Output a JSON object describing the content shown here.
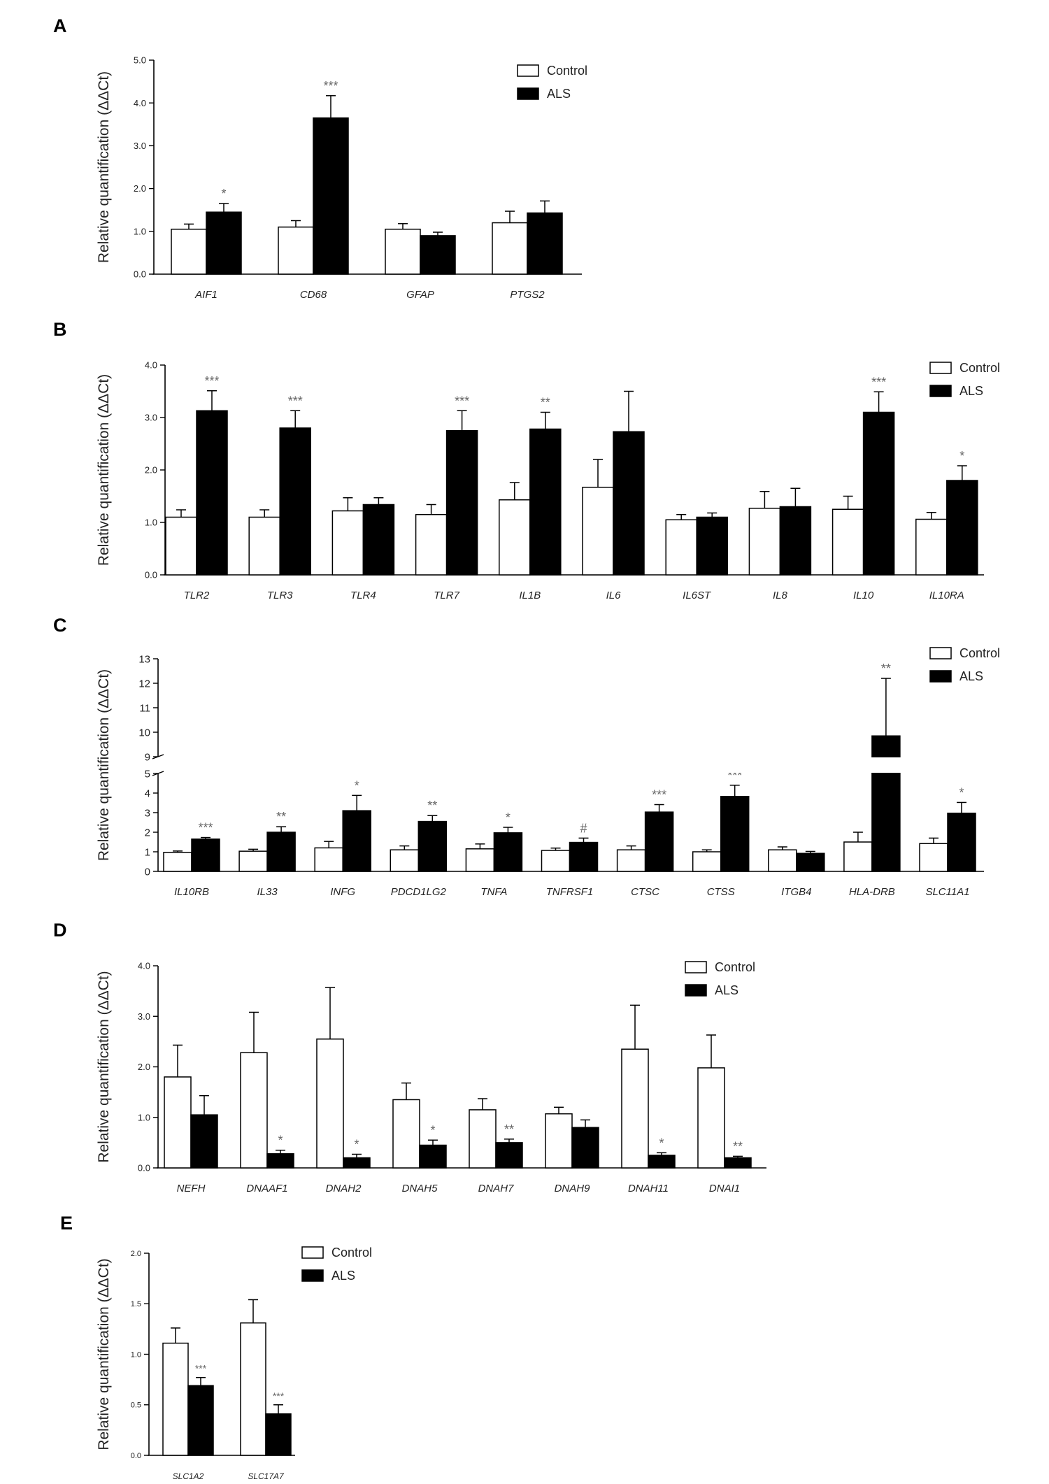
{
  "legend": {
    "control": "Control",
    "als": "ALS"
  },
  "chart_data": [
    {
      "type": "bar",
      "panel_label": "A",
      "ylabel": "Relative quantification (ΔΔCt)",
      "ylim": [
        0,
        5
      ],
      "yticks": [
        "0.0",
        "1.0",
        "2.0",
        "3.0",
        "4.0",
        "5.0"
      ],
      "ytick_values": [
        0,
        1,
        2,
        3,
        4,
        5
      ],
      "categories": [
        "AIF1",
        "CD68",
        "GFAP",
        "PTGS2"
      ],
      "series": [
        {
          "name": "Control",
          "values": [
            1.05,
            1.1,
            1.05,
            1.2
          ],
          "errors": [
            0.12,
            0.15,
            0.13,
            0.27
          ]
        },
        {
          "name": "ALS",
          "values": [
            1.45,
            3.65,
            0.9,
            1.43
          ],
          "errors": [
            0.2,
            0.52,
            0.08,
            0.28
          ]
        }
      ],
      "significance": [
        "*",
        "***",
        "",
        ""
      ],
      "legend_position": "top-right"
    },
    {
      "type": "bar",
      "panel_label": "B",
      "ylabel": "Relative quantification (ΔΔCt)",
      "ylim": [
        0,
        4
      ],
      "yticks": [
        "0.0",
        "1.0",
        "2.0",
        "3.0",
        "4.0"
      ],
      "ytick_values": [
        0,
        1,
        2,
        3,
        4
      ],
      "categories": [
        "TLR2",
        "TLR3",
        "TLR4",
        "TLR7",
        "IL1B",
        "IL6",
        "IL6ST",
        "IL8",
        "IL10",
        "IL10RA"
      ],
      "series": [
        {
          "name": "Control",
          "values": [
            1.1,
            1.1,
            1.22,
            1.15,
            1.43,
            1.67,
            1.05,
            1.27,
            1.25,
            1.06
          ],
          "errors": [
            0.14,
            0.14,
            0.25,
            0.19,
            0.33,
            0.53,
            0.1,
            0.32,
            0.25,
            0.13
          ]
        },
        {
          "name": "ALS",
          "values": [
            3.13,
            2.8,
            1.34,
            2.75,
            2.78,
            2.73,
            1.1,
            1.3,
            3.1,
            1.8
          ],
          "errors": [
            0.38,
            0.33,
            0.13,
            0.38,
            0.32,
            0.77,
            0.08,
            0.35,
            0.39,
            0.28
          ]
        }
      ],
      "significance": [
        "***",
        "***",
        "",
        "***",
        "**",
        "",
        "",
        "",
        "***",
        "*"
      ],
      "legend_position": "top-right"
    },
    {
      "type": "bar",
      "panel_label": "C",
      "ylabel": "Relative quantification (ΔΔCt)",
      "ylim": [
        0,
        13
      ],
      "axis_break": [
        5,
        9
      ],
      "yticks": [
        "0",
        "1",
        "2",
        "3",
        "4",
        "5",
        "9",
        "10",
        "11",
        "12",
        "13"
      ],
      "ytick_values": [
        0,
        1,
        2,
        3,
        4,
        5,
        9,
        10,
        11,
        12,
        13
      ],
      "categories": [
        "IL10RB",
        "IL33",
        "INFG",
        "PDCD1LG2",
        "TNFA",
        "TNFRSF1",
        "CTSC",
        "CTSS",
        "ITGB4",
        "HLA-DRB",
        "SLC11A1"
      ],
      "series": [
        {
          "name": "Control",
          "values": [
            0.97,
            1.03,
            1.2,
            1.1,
            1.15,
            1.07,
            1.1,
            1.0,
            1.1,
            1.5,
            1.42
          ],
          "errors": [
            0.07,
            0.1,
            0.33,
            0.2,
            0.25,
            0.12,
            0.2,
            0.1,
            0.15,
            0.5,
            0.28
          ]
        },
        {
          "name": "ALS",
          "values": [
            1.65,
            2.0,
            3.1,
            2.55,
            1.97,
            1.48,
            3.03,
            3.83,
            0.92,
            9.85,
            2.97
          ],
          "errors": [
            0.08,
            0.28,
            0.78,
            0.3,
            0.28,
            0.22,
            0.38,
            0.57,
            0.1,
            2.35,
            0.55
          ]
        }
      ],
      "significance": [
        "***",
        "**",
        "*",
        "**",
        "*",
        "#",
        "***",
        "***",
        "",
        "**",
        "*"
      ],
      "legend_position": "top-right"
    },
    {
      "type": "bar",
      "panel_label": "D",
      "ylabel": "Relative quantification (ΔΔCt)",
      "ylim": [
        0,
        4
      ],
      "yticks": [
        "0.0",
        "1.0",
        "2.0",
        "3.0",
        "4.0"
      ],
      "ytick_values": [
        0,
        1,
        2,
        3,
        4
      ],
      "categories": [
        "NEFH",
        "DNAAF1",
        "DNAH2",
        "DNAH5",
        "DNAH7",
        "DNAH9",
        "DNAH11",
        "DNAI1"
      ],
      "series": [
        {
          "name": "Control",
          "values": [
            1.8,
            2.28,
            2.55,
            1.35,
            1.15,
            1.07,
            2.35,
            1.98
          ],
          "errors": [
            0.63,
            0.8,
            1.02,
            0.33,
            0.22,
            0.13,
            0.87,
            0.65
          ]
        },
        {
          "name": "ALS",
          "values": [
            1.05,
            0.28,
            0.2,
            0.45,
            0.5,
            0.8,
            0.25,
            0.2
          ],
          "errors": [
            0.38,
            0.07,
            0.07,
            0.1,
            0.07,
            0.15,
            0.05,
            0.03
          ]
        }
      ],
      "significance": [
        "",
        "*",
        "*",
        "*",
        "**",
        "",
        "*",
        "**"
      ],
      "legend_position": "top-right"
    },
    {
      "type": "bar",
      "panel_label": "E",
      "ylabel": "Relative quantification (ΔΔCt)",
      "ylim": [
        0,
        2
      ],
      "yticks": [
        "0.0",
        "0.5",
        "1.0",
        "1.5",
        "2.0"
      ],
      "ytick_values": [
        0,
        0.5,
        1,
        1.5,
        2
      ],
      "categories": [
        "SLC1A2",
        "SLC17A7"
      ],
      "series": [
        {
          "name": "Control",
          "values": [
            1.11,
            1.31
          ],
          "errors": [
            0.15,
            0.23
          ]
        },
        {
          "name": "ALS",
          "values": [
            0.69,
            0.41
          ],
          "errors": [
            0.08,
            0.09
          ]
        }
      ],
      "significance": [
        "***",
        "***"
      ],
      "legend_position": "top-right"
    }
  ]
}
